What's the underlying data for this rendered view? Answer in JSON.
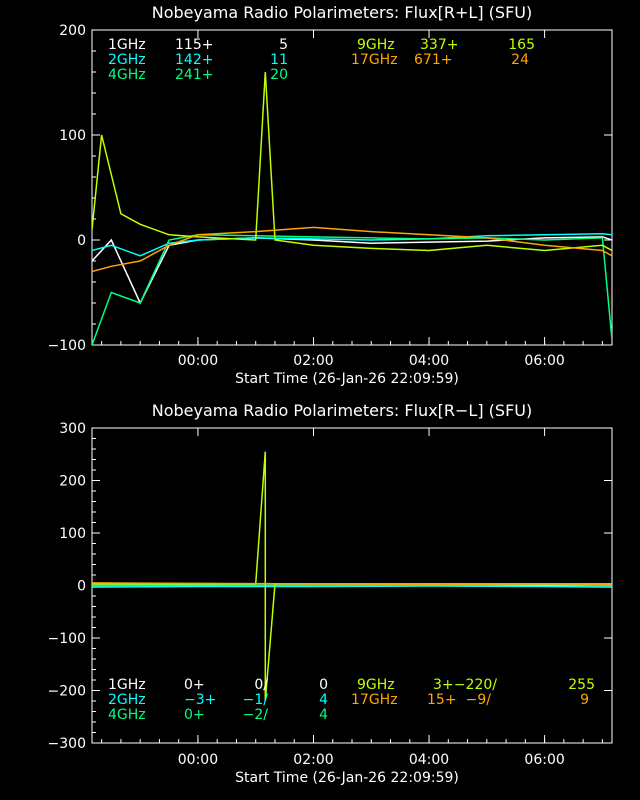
{
  "chart_data": [
    {
      "type": "line",
      "title": "Nobeyama Radio Polarimeters: Flux[R+L] (SFU)",
      "xlabel": "Start Time (26-Jan-26 22:09:59)",
      "ylabel": "",
      "xlim": [
        "22:09:59",
        "07:10"
      ],
      "ylim": [
        -100,
        200
      ],
      "x_ticks": [
        "00:00",
        "02:00",
        "04:00",
        "06:00"
      ],
      "y_ticks": [
        -100,
        0,
        100,
        200
      ],
      "grid": false,
      "legend": [
        {
          "band": "1GHz",
          "base": "115+",
          "range": "5",
          "color": "#ffffff"
        },
        {
          "band": "2GHz",
          "base": "142+",
          "range": "11",
          "color": "#00ffff"
        },
        {
          "band": "4GHz",
          "base": "241+",
          "range": "20",
          "color": "#00ff80"
        },
        {
          "band": "9GHz",
          "base": "337+",
          "range": "165",
          "color": "#c0ff00"
        },
        {
          "band": "17GHz",
          "base": "671+",
          "range": "24",
          "color": "#ffa500"
        }
      ],
      "series": [
        {
          "name": "1GHz",
          "color": "#ffffff",
          "x": [
            "22:10",
            "22:30",
            "23:00",
            "23:30",
            "00:00",
            "01:00",
            "02:00",
            "03:00",
            "04:00",
            "05:00",
            "06:00",
            "07:00",
            "07:10"
          ],
          "values": [
            -20,
            0,
            -60,
            -5,
            0,
            2,
            0,
            -3,
            -2,
            -1,
            2,
            3,
            0
          ]
        },
        {
          "name": "2GHz",
          "color": "#00ffff",
          "x": [
            "22:10",
            "22:30",
            "23:00",
            "23:30",
            "00:00",
            "01:00",
            "02:00",
            "03:00",
            "04:00",
            "05:00",
            "06:00",
            "07:00",
            "07:10"
          ],
          "values": [
            -10,
            -5,
            -15,
            -3,
            0,
            2,
            1,
            0,
            1,
            4,
            5,
            6,
            5
          ]
        },
        {
          "name": "4GHz",
          "color": "#00ff80",
          "x": [
            "22:10",
            "22:30",
            "23:00",
            "23:30",
            "00:00",
            "01:00",
            "02:00",
            "03:00",
            "04:00",
            "05:00",
            "06:00",
            "07:00",
            "07:10"
          ],
          "values": [
            -100,
            -50,
            -60,
            0,
            5,
            4,
            3,
            2,
            1,
            2,
            0,
            2,
            -95
          ]
        },
        {
          "name": "9GHz",
          "color": "#c0ff00",
          "x": [
            "22:10",
            "22:20",
            "22:40",
            "23:00",
            "23:30",
            "00:00",
            "01:00",
            "01:10",
            "01:20",
            "02:00",
            "03:00",
            "04:00",
            "05:00",
            "06:00",
            "07:00",
            "07:10"
          ],
          "values": [
            10,
            100,
            25,
            15,
            5,
            3,
            0,
            160,
            0,
            -5,
            -8,
            -10,
            -5,
            -10,
            -5,
            -10
          ]
        },
        {
          "name": "17GHz",
          "color": "#ffa500",
          "x": [
            "22:10",
            "22:30",
            "23:00",
            "23:30",
            "00:00",
            "01:00",
            "02:00",
            "03:00",
            "04:00",
            "05:00",
            "06:00",
            "07:00",
            "07:10"
          ],
          "values": [
            -30,
            -25,
            -20,
            -5,
            5,
            8,
            12,
            8,
            5,
            2,
            -5,
            -10,
            -15
          ]
        }
      ]
    },
    {
      "type": "line",
      "title": "Nobeyama Radio Polarimeters: Flux[R−L] (SFU)",
      "xlabel": "Start Time (26-Jan-26 22:09:59)",
      "ylabel": "",
      "xlim": [
        "22:09:59",
        "07:10"
      ],
      "ylim": [
        -300,
        300
      ],
      "x_ticks": [
        "00:00",
        "02:00",
        "04:00",
        "06:00"
      ],
      "y_ticks": [
        -300,
        -200,
        -100,
        0,
        100,
        200,
        300
      ],
      "grid": false,
      "legend": [
        {
          "band": "1GHz",
          "base": "0+",
          "range": "0/",
          "extra": "0",
          "color": "#ffffff"
        },
        {
          "band": "2GHz",
          "base": "−3+",
          "range": "−1/",
          "extra": "4",
          "color": "#00ffff"
        },
        {
          "band": "4GHz",
          "base": "0+",
          "range": "−2/",
          "extra": "4",
          "color": "#00ff80"
        },
        {
          "band": "9GHz",
          "base": "3+",
          "range": "−220/",
          "extra": "255",
          "color": "#c0ff00"
        },
        {
          "band": "17GHz",
          "base": "15+",
          "range": "−9/",
          "extra": "9",
          "color": "#ffa500"
        }
      ],
      "series": [
        {
          "name": "1GHz",
          "color": "#ffffff",
          "x": [
            "22:10",
            "00:00",
            "02:00",
            "04:00",
            "06:00",
            "07:10"
          ],
          "values": [
            0,
            0,
            0,
            0,
            0,
            0
          ]
        },
        {
          "name": "2GHz",
          "color": "#00ffff",
          "x": [
            "22:10",
            "00:00",
            "02:00",
            "04:00",
            "06:00",
            "07:10"
          ],
          "values": [
            -3,
            -2,
            -2,
            -1,
            -2,
            -3
          ]
        },
        {
          "name": "4GHz",
          "color": "#00ff80",
          "x": [
            "22:10",
            "00:00",
            "02:00",
            "04:00",
            "06:00",
            "07:10"
          ],
          "values": [
            0,
            1,
            0,
            1,
            2,
            0
          ]
        },
        {
          "name": "9GHz",
          "color": "#c0ff00",
          "x": [
            "22:10",
            "00:00",
            "01:00",
            "01:10",
            "01:10",
            "01:20",
            "02:00",
            "04:00",
            "06:00",
            "07:10"
          ],
          "values": [
            3,
            3,
            3,
            255,
            -220,
            3,
            3,
            3,
            3,
            3
          ]
        },
        {
          "name": "17GHz",
          "color": "#ffa500",
          "x": [
            "22:10",
            "00:00",
            "02:00",
            "04:00",
            "06:00",
            "07:10"
          ],
          "values": [
            5,
            4,
            3,
            2,
            3,
            2
          ]
        }
      ]
    }
  ]
}
